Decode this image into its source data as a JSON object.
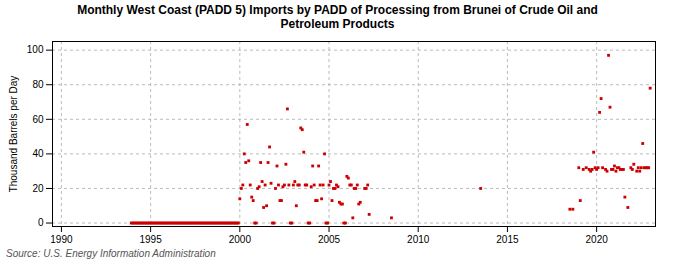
{
  "chart_data": {
    "type": "scatter",
    "title": "Monthly West Coast (PADD 5) Imports by PADD of Processing from Brunei of Crude Oil and\nPetroleum Products",
    "ylabel": "Thousand Barrels per Day",
    "source": "Source: U.S. Energy Information Administration",
    "color": "#cc0000",
    "marker": "square",
    "grid": true,
    "xlim": [
      1989.5,
      2023.3
    ],
    "ylim": [
      -2,
      105
    ],
    "xticks": [
      1990,
      1995,
      2000,
      2005,
      2010,
      2015,
      2020
    ],
    "yticks": [
      0,
      20,
      40,
      60,
      80,
      100
    ],
    "x": [
      1993.917,
      1994.0,
      1994.083,
      1994.167,
      1994.25,
      1994.333,
      1994.417,
      1994.5,
      1994.583,
      1994.667,
      1994.75,
      1994.833,
      1994.917,
      1995.0,
      1995.083,
      1995.167,
      1995.25,
      1995.333,
      1995.417,
      1995.5,
      1995.583,
      1995.667,
      1995.75,
      1995.833,
      1995.917,
      1996.0,
      1996.083,
      1996.167,
      1996.25,
      1996.333,
      1996.417,
      1996.5,
      1996.583,
      1996.667,
      1996.75,
      1996.833,
      1996.917,
      1997.0,
      1997.083,
      1997.167,
      1997.25,
      1997.333,
      1997.417,
      1997.5,
      1997.583,
      1997.667,
      1997.75,
      1997.833,
      1997.917,
      1998.0,
      1998.083,
      1998.167,
      1998.25,
      1998.333,
      1998.417,
      1998.5,
      1998.583,
      1998.667,
      1998.75,
      1998.833,
      1998.917,
      1999.0,
      1999.083,
      1999.167,
      1999.25,
      1999.333,
      1999.417,
      1999.5,
      1999.583,
      1999.667,
      1999.75,
      1999.833,
      1999.917,
      2000.0,
      2000.083,
      2000.167,
      2000.25,
      2000.333,
      2000.417,
      2000.5,
      2000.583,
      2000.667,
      2000.75,
      2000.833,
      2000.917,
      2001.0,
      2001.083,
      2001.167,
      2001.25,
      2001.333,
      2001.417,
      2001.5,
      2001.583,
      2001.667,
      2001.75,
      2001.833,
      2001.917,
      2002.0,
      2002.083,
      2002.167,
      2002.25,
      2002.333,
      2002.417,
      2002.5,
      2002.583,
      2002.667,
      2002.75,
      2002.833,
      2002.917,
      2003.0,
      2003.083,
      2003.167,
      2003.25,
      2003.333,
      2003.417,
      2003.5,
      2003.583,
      2003.667,
      2003.75,
      2003.833,
      2003.917,
      2004.0,
      2004.083,
      2004.167,
      2004.25,
      2004.333,
      2004.417,
      2004.5,
      2004.583,
      2004.667,
      2004.75,
      2004.833,
      2004.917,
      2005.0,
      2005.083,
      2005.167,
      2005.25,
      2005.333,
      2005.417,
      2005.5,
      2005.583,
      2005.667,
      2005.75,
      2005.833,
      2005.917,
      2006.0,
      2006.083,
      2006.167,
      2006.25,
      2006.333,
      2006.417,
      2006.5,
      2006.583,
      2006.667,
      2006.75,
      2007.0,
      2007.083,
      2007.167,
      2007.25,
      2008.5,
      2013.5,
      2018.5,
      2018.667,
      2019.0,
      2019.083,
      2019.25,
      2019.417,
      2019.583,
      2019.667,
      2019.75,
      2019.833,
      2019.917,
      2020.0,
      2020.083,
      2020.167,
      2020.25,
      2020.333,
      2020.5,
      2020.583,
      2020.667,
      2020.75,
      2020.833,
      2020.917,
      2021.0,
      2021.083,
      2021.167,
      2021.25,
      2021.333,
      2021.417,
      2021.5,
      2021.583,
      2021.75,
      2021.917,
      2022.0,
      2022.083,
      2022.25,
      2022.333,
      2022.417,
      2022.5,
      2022.583,
      2022.667,
      2022.75,
      2022.833,
      2022.917,
      2023.0
    ],
    "values": [
      0,
      0,
      0,
      0,
      0,
      0,
      0,
      0,
      0,
      0,
      0,
      0,
      0,
      0,
      0,
      0,
      0,
      0,
      0,
      0,
      0,
      0,
      0,
      0,
      0,
      0,
      0,
      0,
      0,
      0,
      0,
      0,
      0,
      0,
      0,
      0,
      0,
      0,
      0,
      0,
      0,
      0,
      0,
      0,
      0,
      0,
      0,
      0,
      0,
      0,
      0,
      0,
      0,
      0,
      0,
      0,
      0,
      0,
      0,
      0,
      0,
      0,
      0,
      0,
      0,
      0,
      0,
      0,
      0,
      0,
      0,
      0,
      0,
      14,
      20,
      22,
      40,
      35,
      57,
      36,
      22,
      15,
      13,
      0,
      0,
      20,
      21,
      35,
      24,
      9,
      22,
      10,
      35,
      44,
      23,
      0,
      0,
      20,
      33,
      22,
      13,
      13,
      21,
      22,
      34,
      66,
      22,
      0,
      0,
      22,
      24,
      10,
      22,
      22,
      55,
      54,
      41,
      22,
      22,
      0,
      0,
      21,
      33,
      22,
      13,
      13,
      33,
      22,
      14,
      22,
      40,
      0,
      0,
      22,
      24,
      13,
      20,
      20,
      22,
      21,
      12,
      11,
      11,
      0,
      0,
      27,
      26,
      22,
      22,
      3,
      20,
      20,
      22,
      11,
      12,
      20,
      20,
      22,
      5,
      3,
      20,
      8,
      8,
      32,
      13,
      31,
      32,
      31,
      30,
      31,
      41,
      32,
      31,
      32,
      64,
      72,
      32,
      31,
      30,
      97,
      67,
      31,
      31,
      33,
      30,
      32,
      32,
      31,
      31,
      31,
      15,
      9,
      32,
      31,
      34,
      30,
      32,
      30,
      32,
      46,
      32,
      32,
      32,
      32,
      78
    ]
  }
}
